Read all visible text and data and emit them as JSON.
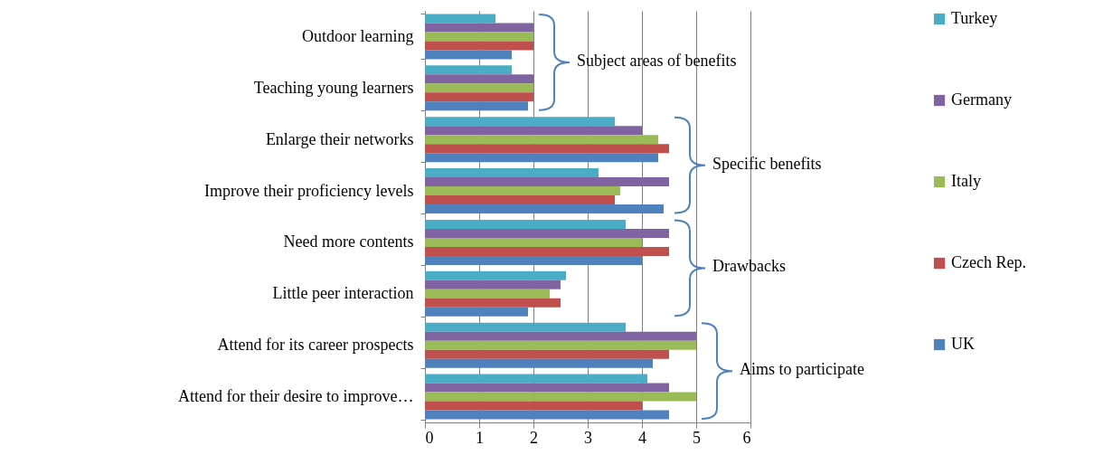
{
  "chart_data": {
    "type": "bar",
    "orientation": "horizontal",
    "categories": [
      "Outdoor learning",
      "Teaching young learners",
      "Enlarge their networks",
      "Improve their proficiency levels",
      "Need more contents",
      "Little peer interaction",
      "Attend for its career prospects",
      "Attend for their desire to improve…"
    ],
    "series": [
      {
        "name": "Turkey",
        "color": "#4bacc6",
        "values": [
          1.3,
          1.6,
          3.5,
          3.2,
          3.7,
          2.6,
          3.7,
          4.1
        ]
      },
      {
        "name": "Germany",
        "color": "#8064a2",
        "values": [
          2,
          2,
          4,
          4.5,
          4.5,
          2.5,
          5,
          4.5
        ]
      },
      {
        "name": "Italy",
        "color": "#9bbb59",
        "values": [
          2,
          2,
          4.3,
          3.6,
          4,
          2.3,
          5,
          5
        ]
      },
      {
        "name": "Czech Rep.",
        "color": "#c0504d",
        "values": [
          2,
          2,
          4.5,
          3.5,
          4.5,
          2.5,
          4.5,
          4
        ]
      },
      {
        "name": "UK",
        "color": "#4f81bd",
        "values": [
          1.6,
          1.9,
          4.3,
          4.4,
          4,
          1.9,
          4.2,
          4.5
        ]
      }
    ],
    "xlim": [
      0,
      6
    ],
    "xticks": [
      0,
      1,
      2,
      3,
      4,
      5,
      6
    ],
    "grid": "x",
    "legend": "right",
    "annotations": [
      "Subject areas of benefits",
      "Specific benefits",
      "Drawbacks",
      "Aims to participate"
    ]
  }
}
